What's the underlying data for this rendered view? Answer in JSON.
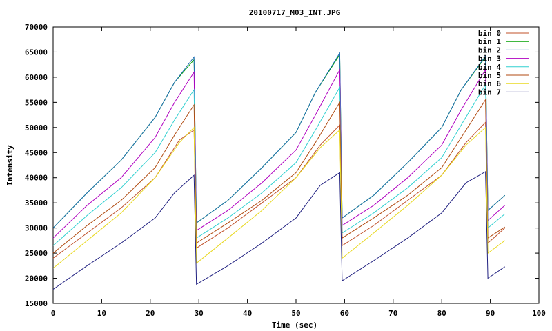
{
  "chart_data": {
    "type": "line",
    "title": "20100717_M03_INT.JPG",
    "xlabel": "Time (sec)",
    "ylabel": "Intensity",
    "xlim": [
      0,
      100
    ],
    "ylim": [
      15000,
      70000
    ],
    "xticks": [
      0,
      10,
      20,
      30,
      40,
      50,
      60,
      70,
      80,
      90,
      100
    ],
    "yticks": [
      15000,
      20000,
      25000,
      30000,
      35000,
      40000,
      45000,
      50000,
      55000,
      60000,
      65000,
      70000
    ],
    "xtick_labels": [
      "0",
      "10",
      "20",
      "30",
      "40",
      "50",
      "60",
      "70",
      "80",
      "90",
      "100"
    ],
    "ytick_labels": [
      "15000",
      "20000",
      "25000",
      "30000",
      "35000",
      "40000",
      "45000",
      "50000",
      "55000",
      "60000",
      "65000",
      "70000"
    ],
    "grid": false,
    "legend_position": "top-right",
    "series": [
      {
        "name": "bin 0",
        "color": "#c0502a",
        "points": [
          [
            0,
            24000
          ],
          [
            7,
            29000
          ],
          [
            14,
            34000
          ],
          [
            21,
            40000
          ],
          [
            26,
            47500
          ],
          [
            29,
            49500
          ],
          [
            29.5,
            26000
          ],
          [
            36,
            30000
          ],
          [
            43,
            35000
          ],
          [
            50,
            40000
          ],
          [
            55,
            46500
          ],
          [
            59,
            50500
          ],
          [
            59.5,
            26500
          ],
          [
            66,
            30500
          ],
          [
            73,
            35500
          ],
          [
            80,
            40500
          ],
          [
            85,
            47000
          ],
          [
            89,
            51000
          ],
          [
            89.5,
            27000
          ],
          [
            93,
            30000
          ]
        ]
      },
      {
        "name": "bin 1",
        "color": "#00a000",
        "points": [
          [
            0,
            30000
          ],
          [
            7,
            37000
          ],
          [
            14,
            43500
          ],
          [
            21,
            52000
          ],
          [
            25,
            59000
          ],
          [
            29,
            63500
          ],
          [
            29.5,
            31000
          ],
          [
            36,
            35500
          ],
          [
            43,
            42000
          ],
          [
            50,
            49000
          ],
          [
            54,
            57000
          ],
          [
            59,
            64500
          ],
          [
            59.5,
            32000
          ],
          [
            66,
            36500
          ],
          [
            73,
            43000
          ],
          [
            80,
            50000
          ],
          [
            84,
            57500
          ],
          [
            89,
            64000
          ],
          [
            89.5,
            33500
          ],
          [
            93,
            36500
          ]
        ]
      },
      {
        "name": "bin 2",
        "color": "#1e6eb4",
        "points": [
          [
            0,
            30000
          ],
          [
            7,
            37000
          ],
          [
            14,
            43500
          ],
          [
            21,
            52000
          ],
          [
            25,
            59000
          ],
          [
            29,
            64000
          ],
          [
            29.5,
            31000
          ],
          [
            36,
            35500
          ],
          [
            43,
            42000
          ],
          [
            50,
            49000
          ],
          [
            54,
            57000
          ],
          [
            59,
            64800
          ],
          [
            59.5,
            32000
          ],
          [
            66,
            36500
          ],
          [
            73,
            43000
          ],
          [
            80,
            50000
          ],
          [
            84,
            57500
          ],
          [
            89,
            64200
          ],
          [
            89.5,
            33500
          ],
          [
            93,
            36500
          ]
        ]
      },
      {
        "name": "bin 3",
        "color": "#b000c0",
        "points": [
          [
            0,
            28000
          ],
          [
            7,
            34500
          ],
          [
            14,
            40000
          ],
          [
            21,
            48000
          ],
          [
            25,
            55000
          ],
          [
            29,
            61000
          ],
          [
            29.5,
            29500
          ],
          [
            36,
            33500
          ],
          [
            43,
            39000
          ],
          [
            50,
            45500
          ],
          [
            54,
            52500
          ],
          [
            59,
            61500
          ],
          [
            59.5,
            30500
          ],
          [
            66,
            34500
          ],
          [
            73,
            40000
          ],
          [
            80,
            46500
          ],
          [
            84,
            53500
          ],
          [
            89,
            61500
          ],
          [
            89.5,
            31500
          ],
          [
            93,
            34500
          ]
        ]
      },
      {
        "name": "bin 4",
        "color": "#30d0d0",
        "points": [
          [
            0,
            26500
          ],
          [
            7,
            32500
          ],
          [
            14,
            38000
          ],
          [
            21,
            45000
          ],
          [
            25,
            51500
          ],
          [
            29,
            57500
          ],
          [
            29.5,
            28000
          ],
          [
            36,
            32000
          ],
          [
            43,
            37000
          ],
          [
            50,
            43000
          ],
          [
            54,
            49500
          ],
          [
            59,
            58000
          ],
          [
            59.5,
            29000
          ],
          [
            66,
            33000
          ],
          [
            73,
            38000
          ],
          [
            80,
            44000
          ],
          [
            84,
            50500
          ],
          [
            89,
            58500
          ],
          [
            89.5,
            30000
          ],
          [
            93,
            32800
          ]
        ]
      },
      {
        "name": "bin 5",
        "color": "#b04a10",
        "points": [
          [
            0,
            25000
          ],
          [
            7,
            30500
          ],
          [
            14,
            35500
          ],
          [
            21,
            42000
          ],
          [
            25,
            48500
          ],
          [
            29,
            54500
          ],
          [
            29.5,
            27000
          ],
          [
            36,
            31000
          ],
          [
            43,
            35500
          ],
          [
            50,
            41000
          ],
          [
            54,
            47000
          ],
          [
            59,
            55000
          ],
          [
            59.5,
            28000
          ],
          [
            66,
            32000
          ],
          [
            73,
            36500
          ],
          [
            80,
            42000
          ],
          [
            84,
            48000
          ],
          [
            89,
            55500
          ],
          [
            89.5,
            28000
          ],
          [
            93,
            30200
          ]
        ]
      },
      {
        "name": "bin 6",
        "color": "#e8d820",
        "points": [
          [
            0,
            22000
          ],
          [
            7,
            27500
          ],
          [
            14,
            33000
          ],
          [
            21,
            40000
          ],
          [
            26,
            47000
          ],
          [
            29,
            50000
          ],
          [
            29.5,
            23000
          ],
          [
            36,
            28000
          ],
          [
            43,
            33500
          ],
          [
            50,
            40000
          ],
          [
            55,
            46000
          ],
          [
            59,
            49500
          ],
          [
            59.5,
            24000
          ],
          [
            66,
            29000
          ],
          [
            73,
            34500
          ],
          [
            80,
            40500
          ],
          [
            85,
            46500
          ],
          [
            89,
            50000
          ],
          [
            89.5,
            25000
          ],
          [
            93,
            27500
          ]
        ]
      },
      {
        "name": "bin 7",
        "color": "#202080",
        "points": [
          [
            0,
            17800
          ],
          [
            7,
            22500
          ],
          [
            14,
            27000
          ],
          [
            21,
            32000
          ],
          [
            25,
            37000
          ],
          [
            29,
            40500
          ],
          [
            29.5,
            18800
          ],
          [
            36,
            22500
          ],
          [
            43,
            27000
          ],
          [
            50,
            32000
          ],
          [
            55,
            38500
          ],
          [
            59,
            41000
          ],
          [
            59.5,
            19500
          ],
          [
            66,
            23500
          ],
          [
            73,
            28000
          ],
          [
            80,
            33000
          ],
          [
            85,
            39000
          ],
          [
            89,
            41200
          ],
          [
            89.5,
            20000
          ],
          [
            93,
            22300
          ]
        ]
      }
    ]
  }
}
